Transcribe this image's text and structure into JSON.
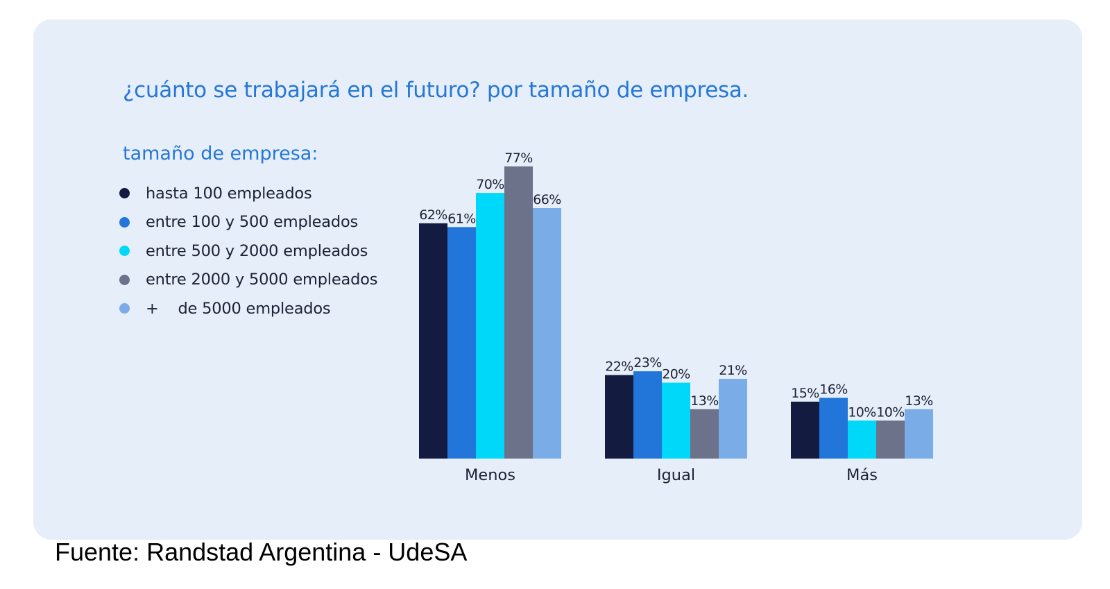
{
  "title": "¿cuánto se trabajará en el futuro? por tamaño de empresa.",
  "legend_title": "tamaño de empresa:",
  "source": "Fuente: Randstad Argentina - UdeSA",
  "chart_data": {
    "type": "bar",
    "title": "¿cuánto se trabajará en el futuro? por tamaño de empresa.",
    "categories": [
      "Menos",
      "Igual",
      "Más"
    ],
    "series": [
      {
        "name": "hasta 100 empleados",
        "color": "#131b40",
        "values": [
          62,
          22,
          15
        ],
        "labels": [
          "62%",
          "22%",
          "15%"
        ]
      },
      {
        "name": "entre 100 y 500 empleados",
        "color": "#2376d9",
        "values": [
          61,
          23,
          16
        ],
        "labels": [
          "61%",
          "23%",
          "16%"
        ]
      },
      {
        "name": "entre 500 y 2000 empleados",
        "color": "#00d8f9",
        "values": [
          70,
          20,
          10
        ],
        "labels": [
          "70%",
          "20%",
          "10%"
        ]
      },
      {
        "name": "entre 2000 y 5000 empleados",
        "color": "#6b7289",
        "values": [
          77,
          13,
          10
        ],
        "labels": [
          "77%",
          "13%",
          "10%"
        ]
      },
      {
        "name": "+    de 5000 empleados",
        "color": "#7aace7",
        "values": [
          66,
          21,
          13
        ],
        "labels": [
          "66%",
          "21%",
          "13%"
        ]
      }
    ],
    "unit": "%",
    "ylim": [
      0,
      80
    ],
    "grid": false,
    "legend": "left"
  }
}
